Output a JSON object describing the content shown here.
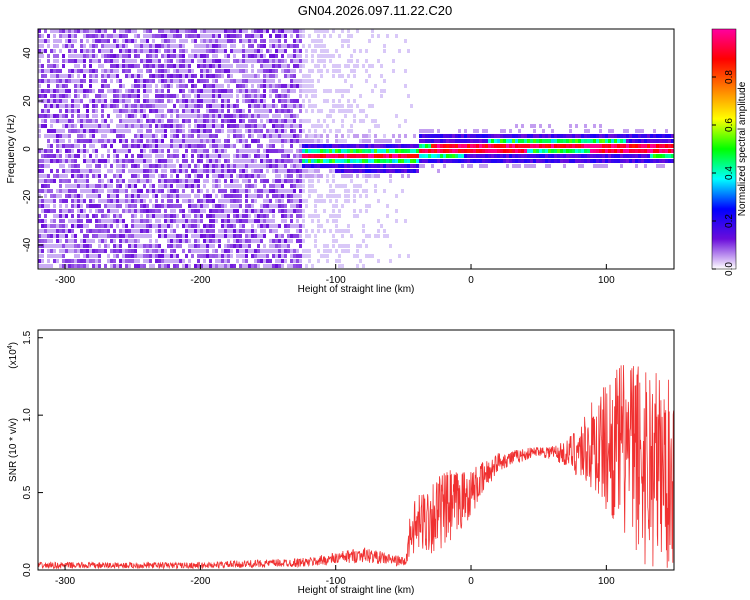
{
  "title": "GN04.2026.097.11.22.C20",
  "chart_data": [
    {
      "type": "heatmap",
      "title": "GN04.2026.097.11.22.C20",
      "xlabel": "Height of straight line (km)",
      "ylabel": "Frequency (Hz)",
      "xlim": [
        -320,
        150
      ],
      "ylim": [
        -50,
        50
      ],
      "x_ticks": [
        -300,
        -200,
        -100,
        0,
        100
      ],
      "y_ticks": [
        -40,
        -20,
        0,
        20,
        40
      ],
      "colorbar": {
        "label": "Normalized spectral amplitude",
        "range": [
          0,
          1
        ],
        "ticks": [
          "0.0",
          "0.2",
          "0.4",
          "0.6",
          "0.8"
        ],
        "colormap": [
          "#ffffff",
          "#6a0ddb",
          "#0000ff",
          "#00ffff",
          "#00ff00",
          "#ffff00",
          "#ff8000",
          "#ff0000",
          "#ff00a0"
        ]
      },
      "regions": [
        {
          "x_range": [
            -320,
            -130
          ],
          "freq_range": [
            -50,
            50
          ],
          "amplitude": 0.12,
          "note": "broadband noise"
        },
        {
          "x_range": [
            -130,
            -40
          ],
          "freq_range": [
            -50,
            50
          ],
          "amplitude": 0.04,
          "note": "sparse noise fading"
        },
        {
          "x_range": [
            -125,
            150
          ],
          "freq_range": [
            -7,
            7
          ],
          "amplitude": 0.8,
          "note": "narrow-band signal near 0 Hz"
        }
      ]
    },
    {
      "type": "line",
      "xlabel": "Height of straight line (km)",
      "ylabel": "SNR (10 * v/v)",
      "y_scale_label": "(x10",
      "y_scale_exponent": "4",
      "xlim": [
        -320,
        150
      ],
      "ylim": [
        0,
        1.55
      ],
      "x_ticks": [
        -300,
        -200,
        -100,
        0,
        100
      ],
      "y_ticks": [
        "0.0",
        "0.5",
        "1.0",
        "1.5"
      ],
      "color": "#f03030",
      "envelope": [
        {
          "x": -320,
          "mean": 0.03,
          "spread": 0.02
        },
        {
          "x": -200,
          "mean": 0.03,
          "spread": 0.02
        },
        {
          "x": -120,
          "mean": 0.05,
          "spread": 0.03
        },
        {
          "x": -80,
          "mean": 0.1,
          "spread": 0.05
        },
        {
          "x": -48,
          "mean": 0.05,
          "spread": 0.03
        },
        {
          "x": -45,
          "mean": 0.25,
          "spread": 0.15
        },
        {
          "x": -30,
          "mean": 0.35,
          "spread": 0.25
        },
        {
          "x": -15,
          "mean": 0.4,
          "spread": 0.25
        },
        {
          "x": 0,
          "mean": 0.5,
          "spread": 0.15
        },
        {
          "x": 20,
          "mean": 0.7,
          "spread": 0.06
        },
        {
          "x": 50,
          "mean": 0.77,
          "spread": 0.03
        },
        {
          "x": 70,
          "mean": 0.75,
          "spread": 0.08
        },
        {
          "x": 90,
          "mean": 0.8,
          "spread": 0.3
        },
        {
          "x": 110,
          "mean": 0.8,
          "spread": 0.55
        },
        {
          "x": 130,
          "mean": 0.7,
          "spread": 0.7
        },
        {
          "x": 150,
          "mean": 0.6,
          "spread": 0.6
        }
      ]
    }
  ]
}
